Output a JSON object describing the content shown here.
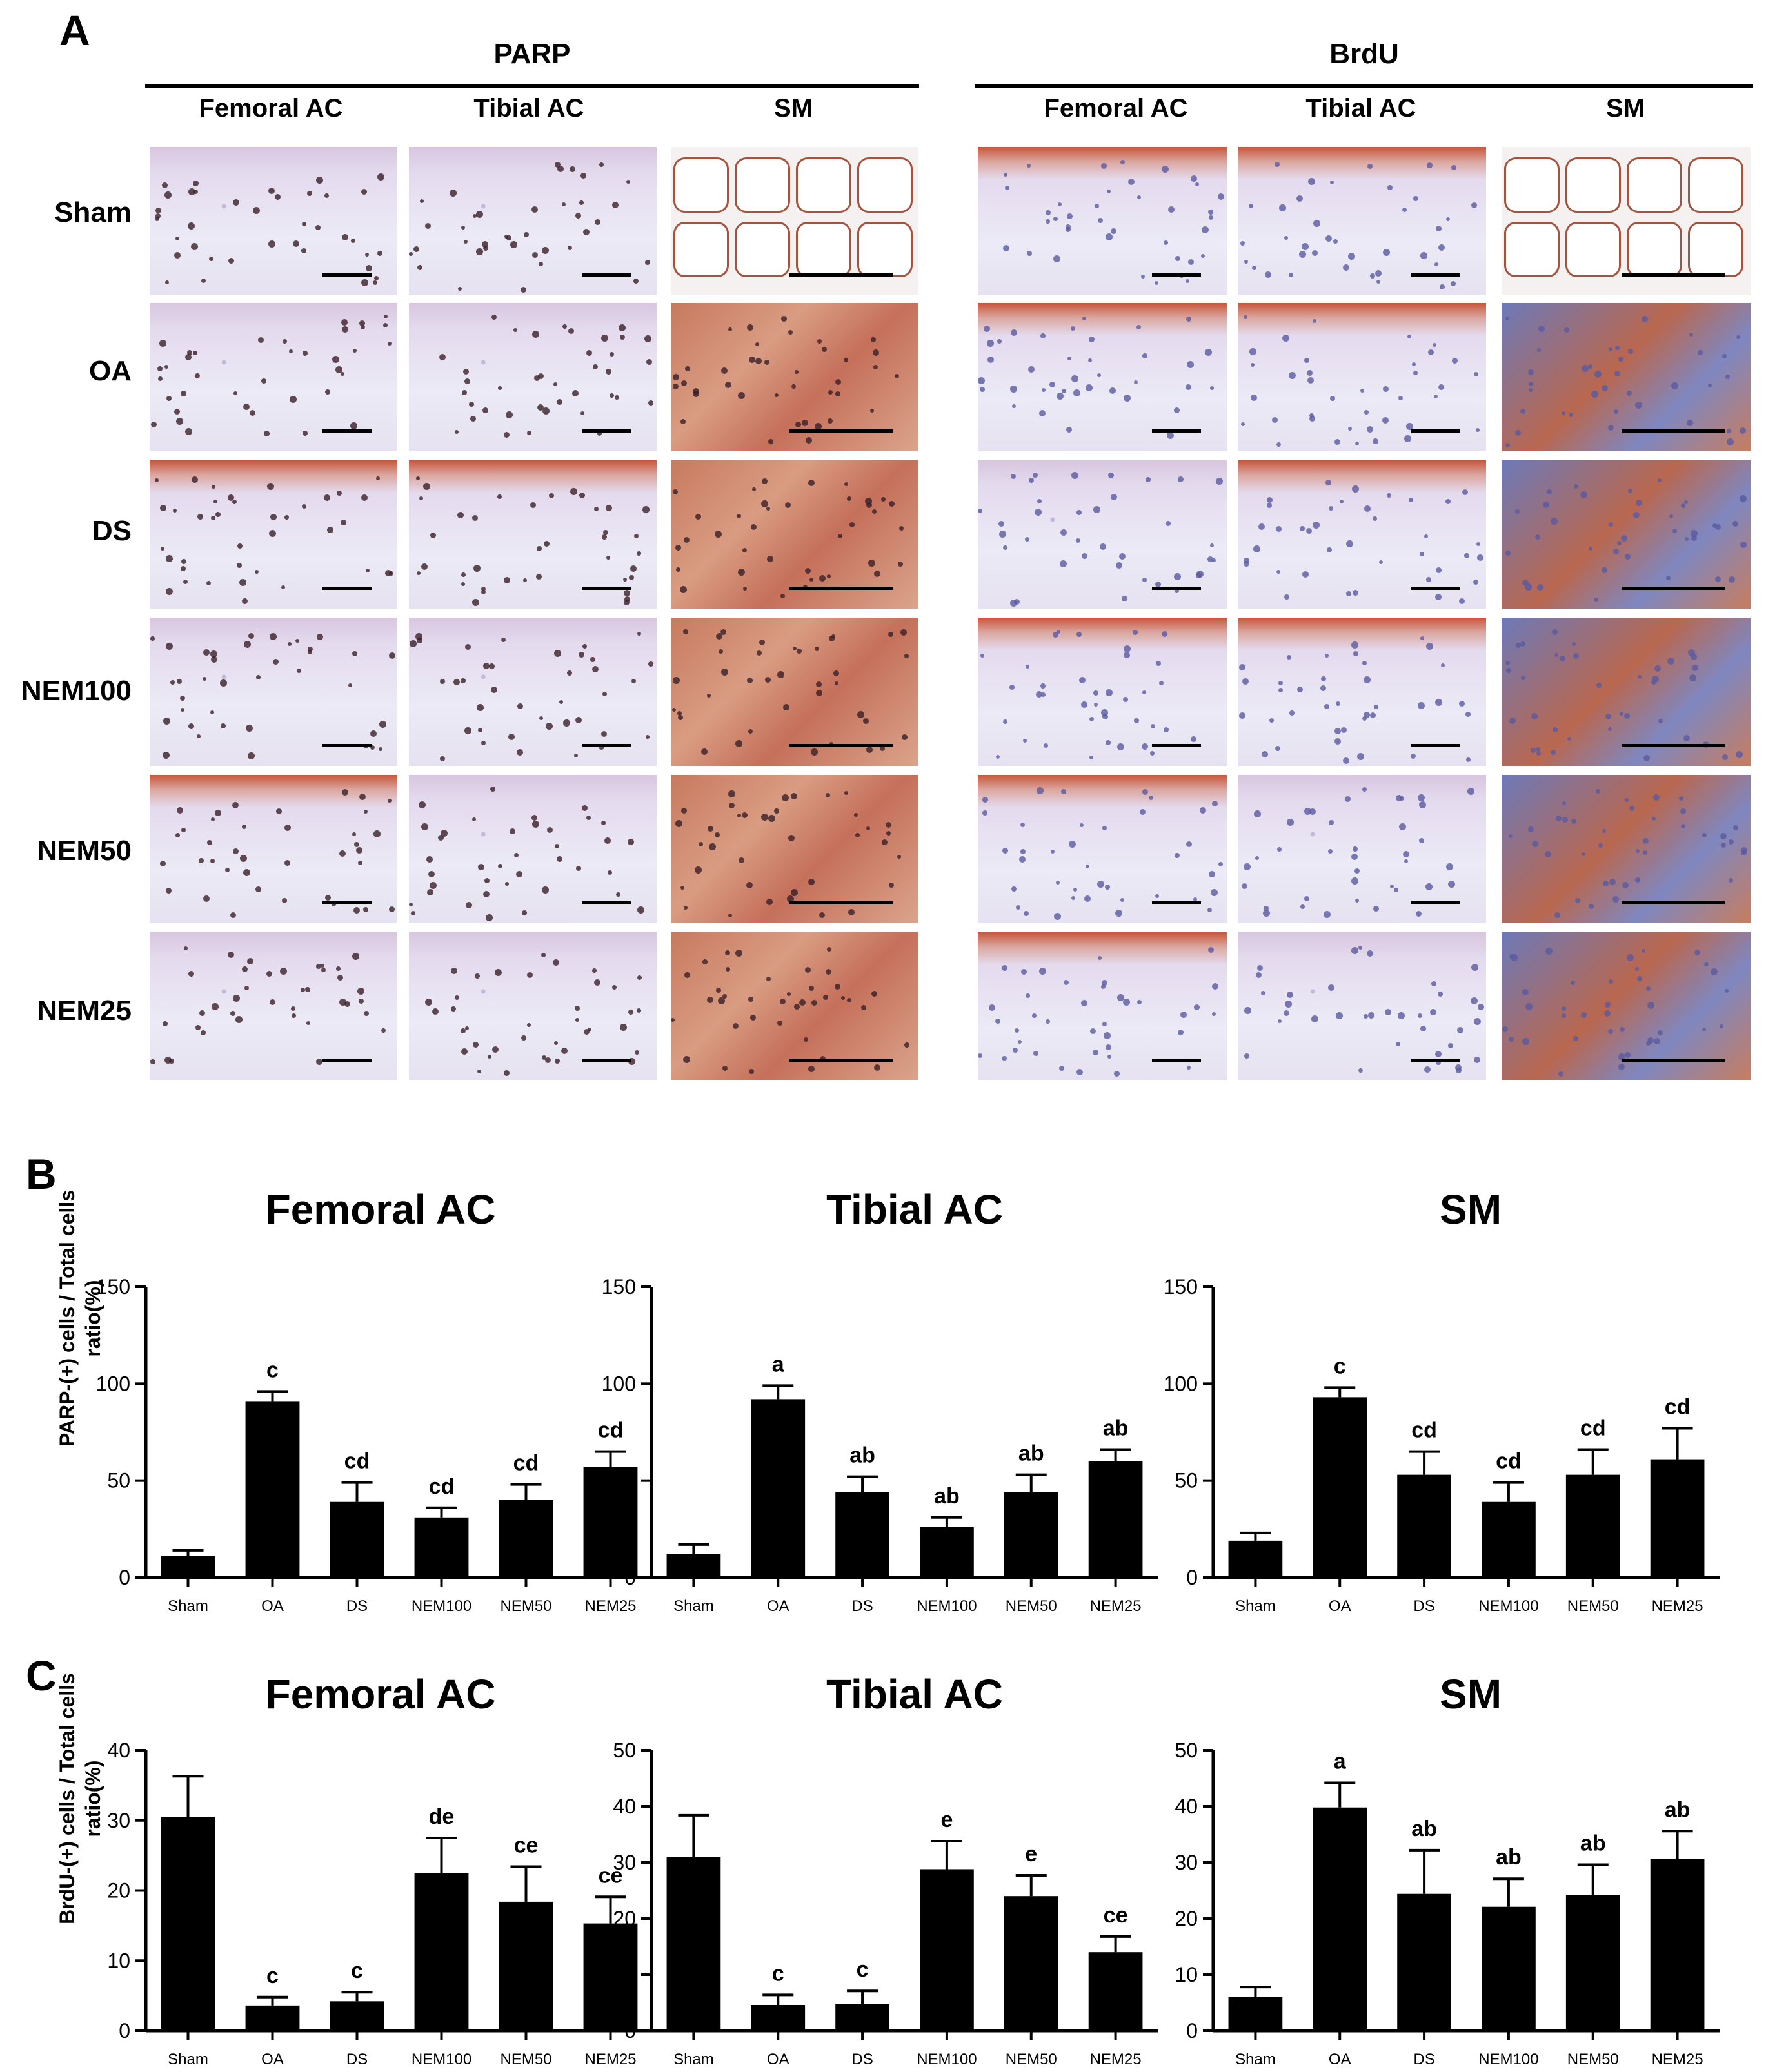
{
  "panel_a": {
    "letter": "A",
    "groups": [
      {
        "title": "PARP",
        "columns": [
          "Femoral AC",
          "Tibial AC",
          "SM"
        ]
      },
      {
        "title": "BrdU",
        "columns": [
          "Femoral AC",
          "Tibial AC",
          "SM"
        ]
      }
    ],
    "rows": [
      "Sham",
      "OA",
      "DS",
      "NEM100",
      "NEM50",
      "NEM25"
    ]
  },
  "panel_b": {
    "letter": "B"
  },
  "panel_c": {
    "letter": "C"
  },
  "chart_data": [
    {
      "panel": "B",
      "type": "bar",
      "title": "Femoral AC",
      "ylabel": "PARP-(+) cells / Total cells ratio(%)",
      "categories": [
        "Sham",
        "OA",
        "DS",
        "NEM100",
        "NEM50",
        "NEM25"
      ],
      "values": [
        11,
        91,
        39,
        31,
        40,
        57
      ],
      "errors": [
        3,
        5,
        10,
        5,
        8,
        8
      ],
      "labels": [
        "",
        "c",
        "cd",
        "cd",
        "cd",
        "cd"
      ],
      "ylim": [
        0,
        150
      ],
      "yticks": [
        0,
        50,
        100,
        150
      ]
    },
    {
      "panel": "B",
      "type": "bar",
      "title": "Tibial AC",
      "ylabel": "",
      "categories": [
        "Sham",
        "OA",
        "DS",
        "NEM100",
        "NEM50",
        "NEM25"
      ],
      "values": [
        12,
        92,
        44,
        26,
        44,
        60
      ],
      "errors": [
        5,
        7,
        8,
        5,
        9,
        6
      ],
      "labels": [
        "",
        "a",
        "ab",
        "ab",
        "ab",
        "ab"
      ],
      "ylim": [
        0,
        150
      ],
      "yticks": [
        0,
        50,
        100,
        150
      ]
    },
    {
      "panel": "B",
      "type": "bar",
      "title": "SM",
      "ylabel": "",
      "categories": [
        "Sham",
        "OA",
        "DS",
        "NEM100",
        "NEM50",
        "NEM25"
      ],
      "values": [
        19,
        93,
        53,
        39,
        53,
        61
      ],
      "errors": [
        4,
        5,
        12,
        10,
        13,
        16
      ],
      "labels": [
        "",
        "c",
        "cd",
        "cd",
        "cd",
        "cd"
      ],
      "ylim": [
        0,
        150
      ],
      "yticks": [
        0,
        50,
        100,
        150
      ]
    },
    {
      "panel": "C",
      "type": "bar",
      "title": "Femoral AC",
      "ylabel": "BrdU-(+) cells / Total cells ratio(%)",
      "categories": [
        "Sham",
        "OA",
        "DS",
        "NEM100",
        "NEM50",
        "NEM25"
      ],
      "values": [
        30.5,
        3.6,
        4.2,
        22.5,
        18.4,
        15.3
      ],
      "errors": [
        5.8,
        1.2,
        1.3,
        5,
        5,
        3.8
      ],
      "labels": [
        "",
        "c",
        "c",
        "de",
        "ce",
        "ce"
      ],
      "ylim": [
        0,
        40
      ],
      "yticks": [
        0,
        10,
        20,
        30,
        40
      ]
    },
    {
      "panel": "C",
      "type": "bar",
      "title": "Tibial AC",
      "ylabel": "",
      "categories": [
        "Sham",
        "OA",
        "DS",
        "NEM100",
        "NEM50",
        "NEM25"
      ],
      "values": [
        31,
        4.6,
        4.8,
        28.8,
        24,
        14
      ],
      "errors": [
        7.4,
        1.8,
        2.3,
        5,
        3.7,
        2.8
      ],
      "labels": [
        "",
        "c",
        "c",
        "e",
        "e",
        "ce"
      ],
      "ylim": [
        0,
        50
      ],
      "yticks": [
        0,
        10,
        20,
        30,
        40,
        50
      ]
    },
    {
      "panel": "C",
      "type": "bar",
      "title": "SM",
      "ylabel": "",
      "categories": [
        "Sham",
        "OA",
        "DS",
        "NEM100",
        "NEM50",
        "NEM25"
      ],
      "values": [
        6,
        39.8,
        24.4,
        22.1,
        24.2,
        30.6
      ],
      "errors": [
        1.8,
        4.4,
        7.8,
        5,
        5.4,
        5
      ],
      "labels": [
        "",
        "a",
        "ab",
        "ab",
        "ab",
        "ab"
      ],
      "ylim": [
        0,
        50
      ],
      "yticks": [
        0,
        10,
        20,
        30,
        40,
        50
      ]
    }
  ]
}
